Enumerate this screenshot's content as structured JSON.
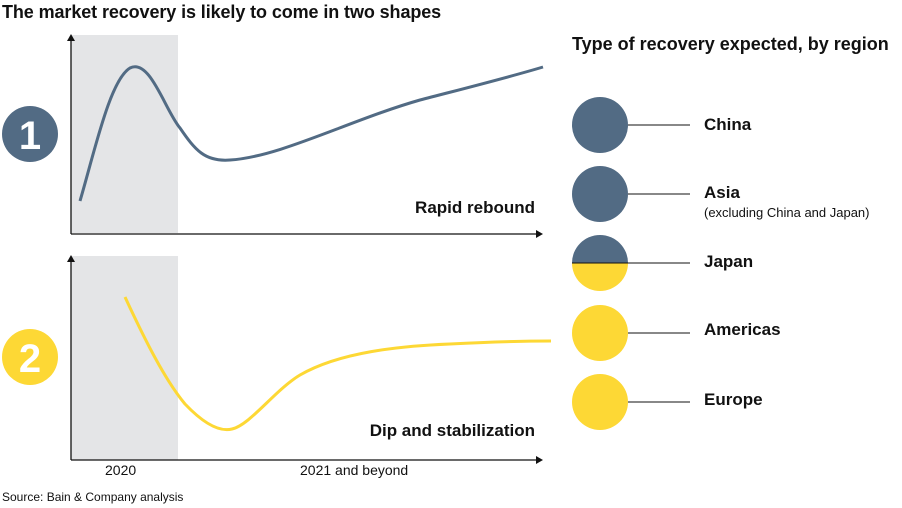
{
  "title": "The market recovery is likely to come in two shapes",
  "source": "Source: Bain & Company analysis",
  "colors": {
    "slate": "#526b84",
    "yellow": "#fdd835",
    "shade": "#e4e5e7",
    "axis": "#111111"
  },
  "chart_data": [
    {
      "type": "line",
      "badge": "1",
      "label": "Rapid rebound",
      "color": "#526b84",
      "x_categories": [
        "2020",
        "2021 and beyond"
      ],
      "shaded_period": "2020",
      "curve": [
        [
          0.02,
          0.15
        ],
        [
          0.12,
          0.85
        ],
        [
          0.28,
          0.45
        ],
        [
          0.42,
          0.38
        ],
        [
          0.75,
          0.62
        ],
        [
          1.0,
          0.85
        ]
      ]
    },
    {
      "type": "line",
      "badge": "2",
      "label": "Dip and stabilization",
      "color": "#fdd835",
      "x_categories": [
        "2020",
        "2021 and beyond"
      ],
      "shaded_period": "2020",
      "curve": [
        [
          0.12,
          0.85
        ],
        [
          0.22,
          0.35
        ],
        [
          0.34,
          0.12
        ],
        [
          0.52,
          0.48
        ],
        [
          0.65,
          0.58
        ],
        [
          1.0,
          0.63
        ]
      ]
    }
  ],
  "legend": {
    "heading": "Type of recovery expected, by region",
    "regions": [
      {
        "name": "China",
        "sub": "",
        "fill": "full-slate"
      },
      {
        "name": "Asia",
        "sub": "(excluding China and Japan)",
        "fill": "full-slate"
      },
      {
        "name": "Japan",
        "sub": "",
        "fill": "half"
      },
      {
        "name": "Americas",
        "sub": "",
        "fill": "full-yellow"
      },
      {
        "name": "Europe",
        "sub": "",
        "fill": "full-yellow"
      }
    ]
  }
}
